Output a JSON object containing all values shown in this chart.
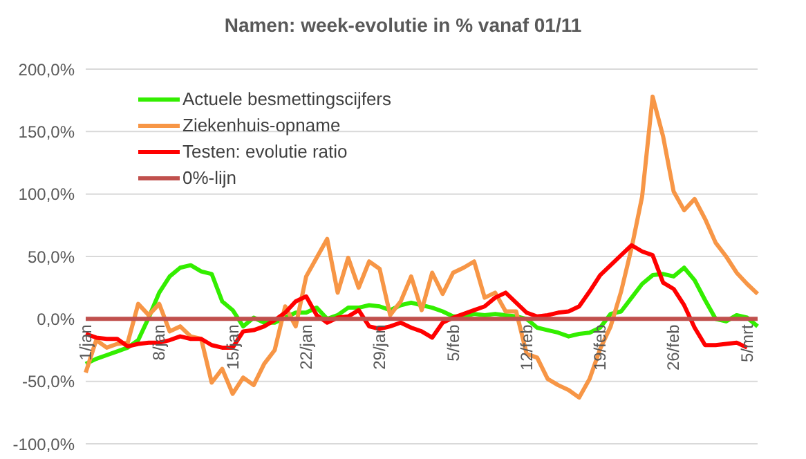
{
  "chart_data": {
    "type": "line",
    "title": "Namen: week-evolutie in % vanaf 01/11",
    "categories": [
      "1/jan",
      null,
      null,
      null,
      null,
      null,
      null,
      "8/jan",
      null,
      null,
      null,
      null,
      null,
      null,
      "15/jan",
      null,
      null,
      null,
      null,
      null,
      null,
      "22/jan",
      null,
      null,
      null,
      null,
      null,
      null,
      "29/jan",
      null,
      null,
      null,
      null,
      null,
      null,
      "5/feb",
      null,
      null,
      null,
      null,
      null,
      null,
      "12/feb",
      null,
      null,
      null,
      null,
      null,
      null,
      "19/feb",
      null,
      null,
      null,
      null,
      null,
      null,
      "26/feb",
      null,
      null,
      null,
      null,
      null,
      null,
      "5/mrt",
      null
    ],
    "series": [
      {
        "name": "Actuele besmettingscijfers",
        "color": "#33ee00",
        "values": [
          -36,
          -32,
          -29,
          -26,
          -23,
          -17,
          1,
          21,
          34,
          41,
          43,
          38,
          36,
          14,
          7,
          -6,
          1,
          -3,
          -3,
          1,
          5,
          5,
          9,
          0,
          3,
          9,
          9,
          11,
          10,
          7,
          11,
          13,
          11,
          9,
          6,
          2,
          2,
          4,
          3,
          4,
          3,
          2,
          0,
          -7,
          -9,
          -11,
          -14,
          -12,
          -11,
          -7,
          4,
          6,
          17,
          28,
          35,
          36,
          34,
          41,
          31,
          15,
          0,
          -2,
          3,
          1,
          -6
        ]
      },
      {
        "name": "Ziekenhuis-opname",
        "color": "#f79646",
        "values": [
          -43,
          -17,
          -23,
          -20,
          -19,
          12,
          3,
          12,
          -10,
          -6,
          -14,
          -16,
          -51,
          -40,
          -60,
          -47,
          -53,
          -36,
          -25,
          10,
          -6,
          34,
          49,
          64,
          21,
          49,
          25,
          46,
          40,
          3,
          14,
          34,
          7,
          37,
          20,
          37,
          41,
          46,
          17,
          21,
          6,
          6,
          -28,
          -31,
          -48,
          -53,
          -57,
          -63,
          -48,
          -24,
          -6,
          22,
          57,
          98,
          178,
          146,
          102,
          87,
          96,
          80,
          61,
          50,
          37,
          28,
          20
        ]
      },
      {
        "name": "Testen: evolutie ratio",
        "color": "#ff0000",
        "values": [
          -12,
          -15,
          -16,
          -16,
          -22,
          -20,
          -19,
          -19,
          -17,
          -14,
          -16,
          -16,
          -21,
          -23,
          -23,
          -10,
          -9,
          -6,
          -1,
          5,
          14,
          18,
          3,
          -3,
          1,
          2,
          7,
          -6,
          -8,
          -6,
          -3,
          -7,
          -10,
          -15,
          -3,
          1,
          4,
          7,
          10,
          17,
          21,
          13,
          5,
          2,
          3,
          5,
          6,
          10,
          22,
          35,
          43,
          51,
          59,
          54,
          51,
          29,
          24,
          11,
          -7,
          -21,
          -21,
          -20,
          -19,
          -23,
          null
        ]
      },
      {
        "name": "0%-lijn",
        "color": "#c0504d",
        "values": [
          0,
          0,
          0,
          0,
          0,
          0,
          0,
          0,
          0,
          0,
          0,
          0,
          0,
          0,
          0,
          0,
          0,
          0,
          0,
          0,
          0,
          0,
          0,
          0,
          0,
          0,
          0,
          0,
          0,
          0,
          0,
          0,
          0,
          0,
          0,
          0,
          0,
          0,
          0,
          0,
          0,
          0,
          0,
          0,
          0,
          0,
          0,
          0,
          0,
          0,
          0,
          0,
          0,
          0,
          0,
          0,
          0,
          0,
          0,
          0,
          0,
          0,
          0,
          0,
          0
        ]
      }
    ],
    "ylim": [
      -100,
      200
    ],
    "yticks": [
      {
        "value": -100,
        "label": "-100,0%"
      },
      {
        "value": -50,
        "label": "-50,0%"
      },
      {
        "value": 0,
        "label": "0,0%"
      },
      {
        "value": 50,
        "label": "50,0%"
      },
      {
        "value": 100,
        "label": "100,0%"
      },
      {
        "value": 150,
        "label": "150,0%"
      },
      {
        "value": 200,
        "label": "200,0%"
      }
    ],
    "grid": "y",
    "legend": "top left",
    "marker": "none",
    "line_style": "solid"
  }
}
